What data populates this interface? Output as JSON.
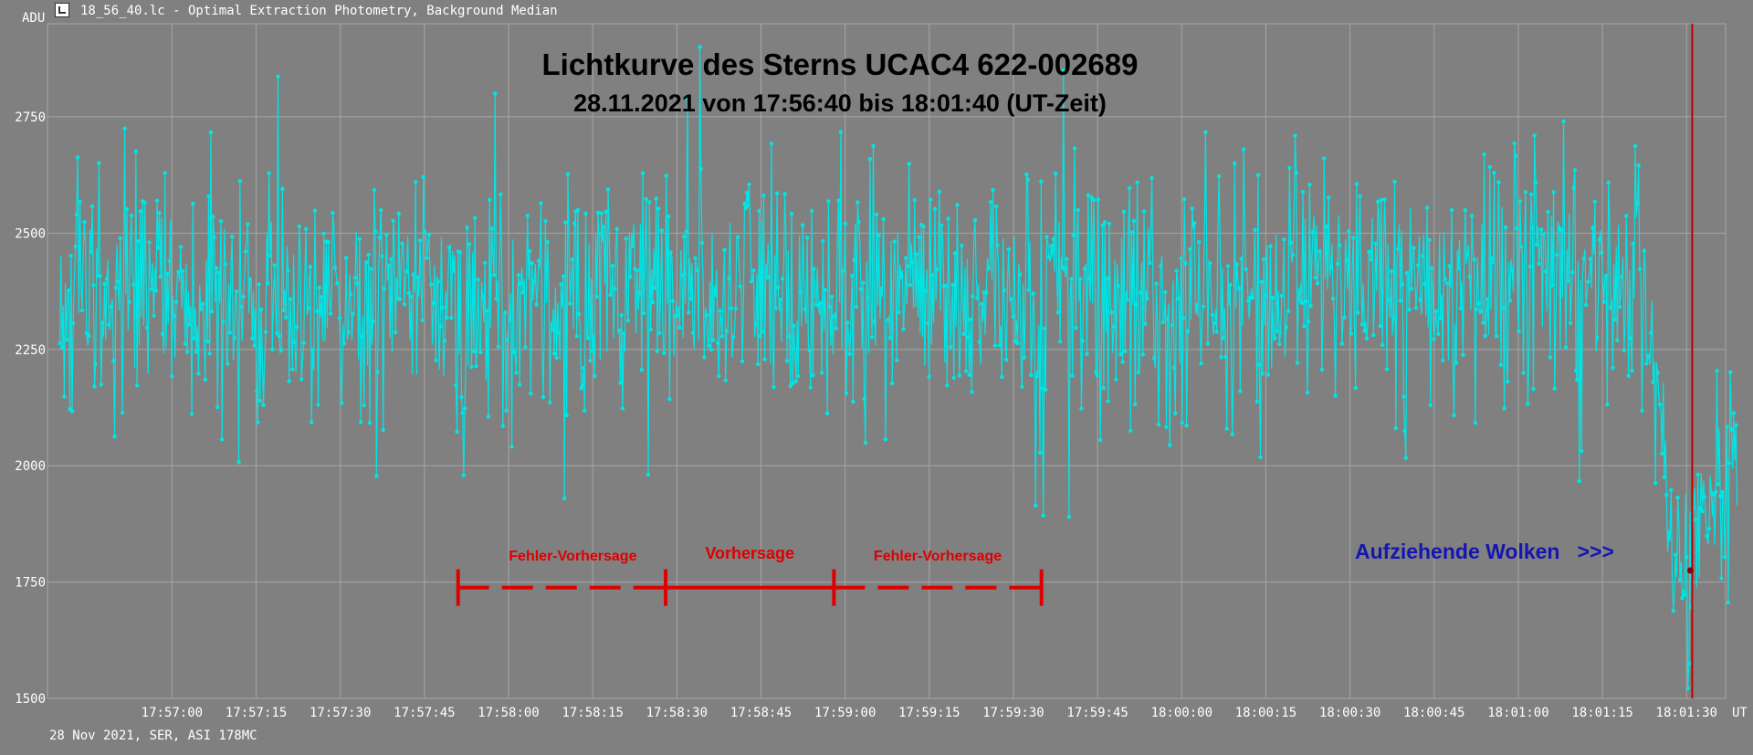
{
  "window": {
    "title": "18_56_40.lc - Optimal Extraction Photometry, Background Median",
    "footer": "28 Nov 2021, SER, ASI 178MC"
  },
  "chart_data": {
    "type": "line",
    "title": "Lichtkurve des Sterns UCAC4 622-002689",
    "subtitle": "28.11.2021  von  17:56:40  bis  18:01:40 (UT-Zeit)",
    "ylabel": "ADU",
    "xlabel": "UT",
    "ylim": [
      1500,
      2950
    ],
    "xlim_seconds_after_start": [
      0,
      299
    ],
    "start_time": "17:56:40",
    "yticks": [
      1500,
      1750,
      2000,
      2250,
      2500,
      2750
    ],
    "xticks": [
      "17:57:00",
      "17:57:15",
      "17:57:30",
      "17:57:45",
      "17:58:00",
      "17:58:15",
      "17:58:30",
      "17:58:45",
      "17:59:00",
      "17:59:15",
      "17:59:30",
      "17:59:45",
      "18:00:00",
      "18:00:15",
      "18:00:30",
      "18:00:45",
      "18:01:00",
      "18:01:15",
      "18:01:30"
    ],
    "grid": true,
    "series": [
      {
        "color": "#00e5e5",
        "baseline": [
          [
            0,
            2370
          ],
          [
            40,
            2360
          ],
          [
            80,
            2345
          ],
          [
            140,
            2380
          ],
          [
            200,
            2370
          ],
          [
            260,
            2395
          ],
          [
            283,
            2380
          ],
          [
            285,
            2150
          ],
          [
            287,
            1870
          ],
          [
            290,
            1820
          ],
          [
            293,
            1880
          ],
          [
            296,
            1960
          ],
          [
            299,
            1980
          ]
        ],
        "noise_std_adu": 130,
        "point_count": 1500,
        "highlights": [
          {
            "x_seconds": 11.5,
            "y": 2725
          },
          {
            "x_seconds": 77.5,
            "y": 2800
          },
          {
            "x_seconds": 112,
            "y": 2790
          },
          {
            "x_seconds": 114,
            "y": 2900
          },
          {
            "x_seconds": 179,
            "y": 2850
          },
          {
            "x_seconds": 268,
            "y": 2740
          },
          {
            "x_seconds": 90,
            "y": 1930
          },
          {
            "x_seconds": 180,
            "y": 1890
          },
          {
            "x_seconds": 290.5,
            "y": 1575
          }
        ]
      }
    ],
    "annotations": {
      "interval_start": "17:57:51",
      "interval_end": "17:59:35",
      "prediction_start": "17:58:28",
      "prediction_end": "17:58:58",
      "error_label_left": "Fehler-Vorhersage",
      "prediction_label": "Vorhersage",
      "error_label_right": "Fehler-Vorhersage",
      "bar_y_adu": 1750,
      "clouds_label": "Aufziehende Wolken   >>>",
      "marker_time": "18:01:31",
      "marker_adu": 1775
    },
    "colors": {
      "background": "#808080",
      "grid": "#a6a6a6",
      "series": "#00e5e5",
      "interval": "#dd0000",
      "marker_line": "#c00000",
      "clouds_label": "#1515b0"
    }
  }
}
